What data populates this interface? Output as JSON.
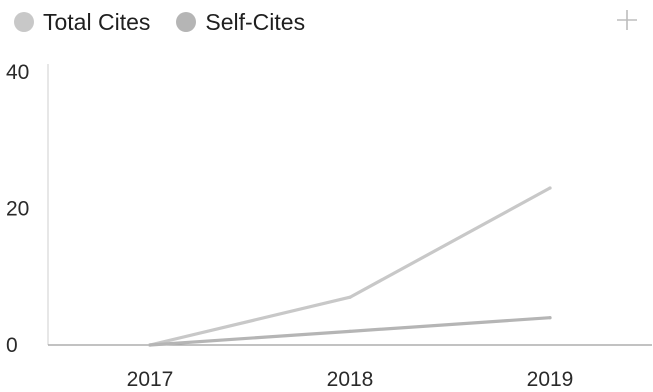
{
  "chart_data": {
    "type": "line",
    "x": [
      "2017",
      "2018",
      "2019"
    ],
    "series": [
      {
        "name": "Total Cites",
        "values": [
          0,
          7,
          23
        ],
        "color": "#c8c8c8"
      },
      {
        "name": "Self-Cites",
        "values": [
          0,
          2,
          4
        ],
        "color": "#b5b5b5"
      }
    ],
    "ylim": [
      0,
      40
    ],
    "yticks": [
      0,
      20,
      40
    ],
    "grid": false,
    "legend": "top-left"
  },
  "icons": {
    "expand": "plus-icon"
  }
}
